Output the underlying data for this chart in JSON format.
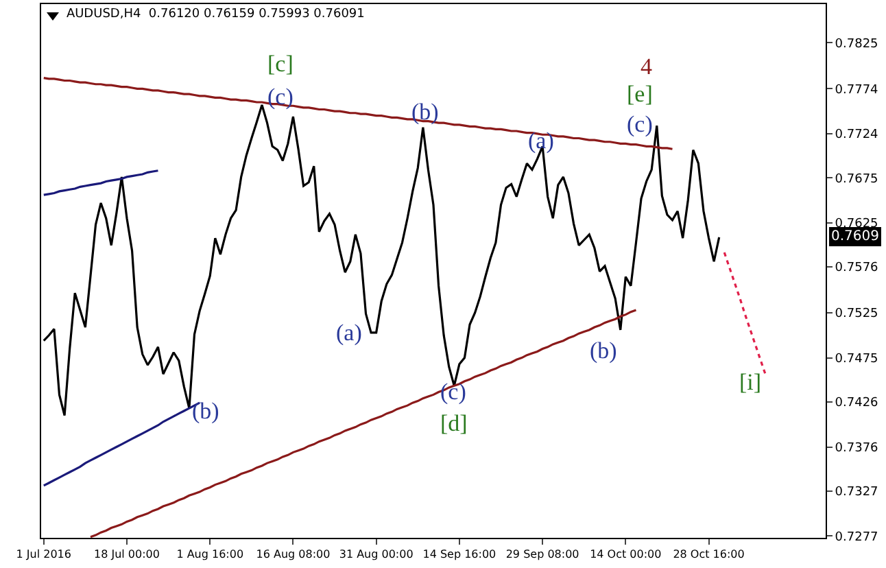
{
  "chart_data": {
    "type": "line",
    "title": "AUDUSD,H4  0.76120 0.76159 0.75993 0.76091",
    "marker": "none",
    "line_style": "solid",
    "grid": false,
    "categories": [
      "1 Jul 2016",
      null,
      null,
      null,
      null,
      null,
      null,
      null,
      null,
      null,
      null,
      null,
      null,
      null,
      null,
      null,
      "18 Jul 00:00",
      null,
      null,
      null,
      null,
      null,
      null,
      null,
      null,
      null,
      null,
      null,
      null,
      null,
      null,
      null,
      "1 Aug 16:00",
      null,
      null,
      null,
      null,
      null,
      null,
      null,
      null,
      null,
      null,
      null,
      null,
      null,
      null,
      null,
      "16 Aug 08:00",
      null,
      null,
      null,
      null,
      null,
      null,
      null,
      null,
      null,
      null,
      null,
      null,
      null,
      null,
      null,
      "31 Aug 00:00",
      null,
      null,
      null,
      null,
      null,
      null,
      null,
      null,
      null,
      null,
      null,
      null,
      null,
      null,
      null,
      "14 Sep 16:00",
      null,
      null,
      null,
      null,
      null,
      null,
      null,
      null,
      null,
      null,
      null,
      null,
      null,
      null,
      null,
      "29 Sep 08:00",
      null,
      null,
      null,
      null,
      null,
      null,
      null,
      null,
      null,
      null,
      null,
      null,
      null,
      null,
      null,
      "14 Oct 00:00",
      null,
      null,
      null,
      null,
      null,
      null,
      null,
      null,
      null,
      null,
      null,
      null,
      null,
      null,
      null,
      "28 Oct 16:00",
      null,
      null,
      null,
      null,
      null,
      null,
      null,
      null,
      null,
      null,
      null,
      null,
      null,
      null,
      null,
      null,
      null,
      null,
      null,
      null,
      null,
      null
    ],
    "ylim": [
      0.7275,
      0.7868
    ],
    "yticks": [
      0.7277,
      0.7327,
      0.7376,
      0.7426,
      0.7475,
      0.7525,
      0.7576,
      0.7625,
      0.7675,
      0.7724,
      0.7774,
      0.7825
    ],
    "series": [
      {
        "color": "#000000",
        "values": [
          0.7494,
          0.75,
          0.7507,
          0.7434,
          0.7411,
          0.7485,
          0.7547,
          0.7528,
          0.7509,
          0.7566,
          0.7623,
          0.7647,
          0.763,
          0.76,
          0.7636,
          0.7676,
          0.763,
          0.7594,
          0.7509,
          0.7479,
          0.7467,
          0.7476,
          0.7487,
          0.7457,
          0.7469,
          0.7481,
          0.7472,
          0.7443,
          0.7419,
          0.7501,
          0.7527,
          0.7546,
          0.7566,
          0.7608,
          0.759,
          0.7612,
          0.763,
          0.7639,
          0.7676,
          0.77,
          0.7719,
          0.7737,
          0.7756,
          0.7736,
          0.771,
          0.7706,
          0.7694,
          0.7713,
          0.7743,
          0.7707,
          0.7666,
          0.767,
          0.7688,
          0.7615,
          0.7627,
          0.7635,
          0.7623,
          0.7594,
          0.757,
          0.7582,
          0.7612,
          0.7591,
          0.7524,
          0.7503,
          0.7503,
          0.7538,
          0.7557,
          0.7567,
          0.7585,
          0.7603,
          0.763,
          0.766,
          0.7686,
          0.7731,
          0.7684,
          0.7645,
          0.7555,
          0.75,
          0.7465,
          0.7444,
          0.7468,
          0.7475,
          0.7512,
          0.7525,
          0.7543,
          0.7565,
          0.7586,
          0.7603,
          0.7645,
          0.7664,
          0.7668,
          0.7654,
          0.7673,
          0.7691,
          0.7684,
          0.7696,
          0.771,
          0.7654,
          0.763,
          0.7667,
          0.7676,
          0.7658,
          0.7624,
          0.76,
          0.7606,
          0.7612,
          0.7597,
          0.7571,
          0.7577,
          0.7559,
          0.7541,
          0.7506,
          0.7565,
          0.7555,
          0.7603,
          0.7652,
          0.7671,
          0.7684,
          0.7733,
          0.7655,
          0.7634,
          0.7628,
          0.7638,
          0.7608,
          0.765,
          0.7706,
          0.7691,
          0.7638,
          0.7608,
          0.7582,
          0.7609,
          null,
          null,
          null,
          null,
          null,
          null,
          null,
          null,
          null,
          null,
          null,
          null,
          null,
          null,
          null,
          null,
          null,
          null,
          null,
          null
        ]
      },
      {
        "color": "#8b1a1a",
        "values": [
          0.7786,
          0.7785,
          0.7785,
          0.7784,
          0.7783,
          0.7783,
          0.7782,
          0.7781,
          0.7781,
          0.778,
          0.7779,
          0.7779,
          0.7778,
          0.7778,
          0.7777,
          0.7776,
          0.7776,
          0.7775,
          0.7774,
          0.7774,
          0.7773,
          0.7772,
          0.7772,
          0.7771,
          0.777,
          0.777,
          0.7769,
          0.7768,
          0.7768,
          0.7767,
          0.7766,
          0.7766,
          0.7765,
          0.7764,
          0.7764,
          0.7763,
          0.7762,
          0.7762,
          0.7761,
          0.7761,
          0.776,
          0.7759,
          0.7759,
          0.7758,
          0.7757,
          0.7757,
          0.7756,
          0.7755,
          0.7755,
          0.7754,
          0.7753,
          0.7753,
          0.7752,
          0.7751,
          0.7751,
          0.775,
          0.7749,
          0.7749,
          0.7748,
          0.7747,
          0.7747,
          0.7746,
          0.7746,
          0.7745,
          0.7744,
          0.7744,
          0.7743,
          0.7742,
          0.7742,
          0.7741,
          0.774,
          0.774,
          0.7739,
          0.7738,
          0.7738,
          0.7737,
          0.7736,
          0.7736,
          0.7735,
          0.7734,
          0.7734,
          0.7733,
          0.7732,
          0.7732,
          0.7731,
          0.773,
          0.773,
          0.7729,
          0.7729,
          0.7728,
          0.7727,
          0.7727,
          0.7726,
          0.7725,
          0.7725,
          0.7724,
          0.7723,
          0.7723,
          0.7722,
          0.7721,
          0.7721,
          0.772,
          0.7719,
          0.7719,
          0.7718,
          0.7717,
          0.7717,
          0.7716,
          0.7715,
          0.7715,
          0.7714,
          0.7713,
          0.7713,
          0.7712,
          0.7712,
          0.7711,
          0.771,
          0.771,
          0.7709,
          0.7708,
          0.7708,
          0.7707,
          null,
          null,
          null,
          null,
          null,
          null,
          null,
          null,
          null,
          null,
          null,
          null,
          null,
          null,
          null,
          null,
          null,
          null,
          null,
          null,
          null,
          null,
          null,
          null,
          null,
          null,
          null,
          null,
          null
        ]
      },
      {
        "color": "#8b1a1a",
        "values": [
          null,
          null,
          null,
          null,
          null,
          null,
          null,
          null,
          null,
          0.7276,
          0.7278,
          0.7281,
          0.7283,
          0.7286,
          0.7288,
          0.729,
          0.7293,
          0.7295,
          0.7298,
          0.73,
          0.7302,
          0.7305,
          0.7307,
          0.731,
          0.7312,
          0.7314,
          0.7317,
          0.7319,
          0.7322,
          0.7324,
          0.7326,
          0.7329,
          0.7331,
          0.7334,
          0.7336,
          0.7338,
          0.7341,
          0.7343,
          0.7346,
          0.7348,
          0.735,
          0.7353,
          0.7355,
          0.7358,
          0.736,
          0.7362,
          0.7365,
          0.7367,
          0.737,
          0.7372,
          0.7374,
          0.7377,
          0.7379,
          0.7382,
          0.7384,
          0.7386,
          0.7389,
          0.7391,
          0.7394,
          0.7396,
          0.7398,
          0.7401,
          0.7403,
          0.7406,
          0.7408,
          0.741,
          0.7413,
          0.7415,
          0.7418,
          0.742,
          0.7422,
          0.7425,
          0.7427,
          0.743,
          0.7432,
          0.7434,
          0.7437,
          0.7439,
          0.7442,
          0.7444,
          0.7446,
          0.7449,
          0.7451,
          0.7454,
          0.7456,
          0.7458,
          0.7461,
          0.7463,
          0.7466,
          0.7468,
          0.747,
          0.7473,
          0.7475,
          0.7478,
          0.748,
          0.7482,
          0.7485,
          0.7487,
          0.749,
          0.7492,
          0.7494,
          0.7497,
          0.7499,
          0.7502,
          0.7504,
          0.7506,
          0.7509,
          0.7511,
          0.7514,
          0.7516,
          0.7518,
          0.7521,
          0.7523,
          0.7526,
          0.7528,
          null,
          null,
          null,
          null,
          null,
          null,
          null,
          null,
          null,
          null,
          null,
          null,
          null,
          null,
          null,
          null,
          null,
          null,
          null,
          null,
          null,
          null,
          null,
          null,
          null,
          null,
          null,
          null,
          null,
          null,
          null,
          null,
          null,
          null,
          null,
          null
        ]
      },
      {
        "color": "#1a1a7a",
        "values": [
          0.7656,
          0.7657,
          0.7658,
          0.766,
          0.7661,
          0.7662,
          0.7663,
          0.7665,
          0.7666,
          0.7667,
          0.7668,
          0.7669,
          0.7671,
          0.7672,
          0.7673,
          0.7674,
          0.7676,
          0.7677,
          0.7678,
          0.7679,
          0.7681,
          0.7682,
          0.7683,
          null,
          null,
          null,
          null,
          null,
          null,
          null,
          null,
          null,
          null,
          null,
          null,
          null,
          null,
          null,
          null,
          null,
          null,
          null,
          null,
          null,
          null,
          null,
          null,
          null,
          null,
          null,
          null,
          null,
          null,
          null,
          null,
          null,
          null,
          null,
          null,
          null,
          null,
          null,
          null,
          null,
          null,
          null,
          null,
          null,
          null,
          null,
          null,
          null,
          null,
          null,
          null,
          null,
          null,
          null,
          null,
          null,
          null,
          null,
          null,
          null,
          null,
          null,
          null,
          null,
          null,
          null,
          null,
          null,
          null,
          null,
          null,
          null,
          null,
          null,
          null,
          null,
          null,
          null,
          null,
          null,
          null,
          null,
          null,
          null,
          null,
          null,
          null,
          null,
          null,
          null,
          null,
          null,
          null,
          null,
          null,
          null,
          null,
          null,
          null,
          null,
          null,
          null,
          null,
          null,
          null,
          null,
          null,
          null,
          null,
          null,
          null,
          null,
          null,
          null,
          null,
          null,
          null,
          null,
          null,
          null,
          null,
          null,
          null,
          null,
          null,
          null,
          null
        ]
      },
      {
        "color": "#1a1a7a",
        "values": [
          0.7333,
          0.7336,
          0.7339,
          0.7342,
          0.7345,
          0.7348,
          0.7351,
          0.7354,
          0.7358,
          0.7361,
          0.7364,
          0.7367,
          0.737,
          0.7373,
          0.7376,
          0.7379,
          0.7382,
          0.7385,
          0.7388,
          0.7391,
          0.7394,
          0.7397,
          0.74,
          0.7404,
          0.7407,
          0.741,
          0.7413,
          0.7416,
          0.7419,
          0.7422,
          0.7425,
          null,
          null,
          null,
          null,
          null,
          null,
          null,
          null,
          null,
          null,
          null,
          null,
          null,
          null,
          null,
          null,
          null,
          null,
          null,
          null,
          null,
          null,
          null,
          null,
          null,
          null,
          null,
          null,
          null,
          null,
          null,
          null,
          null,
          null,
          null,
          null,
          null,
          null,
          null,
          null,
          null,
          null,
          null,
          null,
          null,
          null,
          null,
          null,
          null,
          null,
          null,
          null,
          null,
          null,
          null,
          null,
          null,
          null,
          null,
          null,
          null,
          null,
          null,
          null,
          null,
          null,
          null,
          null,
          null,
          null,
          null,
          null,
          null,
          null,
          null,
          null,
          null,
          null,
          null,
          null,
          null,
          null,
          null,
          null,
          null,
          null,
          null,
          null,
          null,
          null,
          null,
          null,
          null,
          null,
          null,
          null,
          null,
          null,
          null,
          null,
          null,
          null,
          null,
          null,
          null,
          null,
          null,
          null,
          null,
          null,
          null,
          null,
          null,
          null,
          null,
          null,
          null,
          null,
          null,
          null
        ]
      },
      {
        "color": "#e0204a",
        "line_style": "dotted",
        "values": [
          null,
          null,
          null,
          null,
          null,
          null,
          null,
          null,
          null,
          null,
          null,
          null,
          null,
          null,
          null,
          null,
          null,
          null,
          null,
          null,
          null,
          null,
          null,
          null,
          null,
          null,
          null,
          null,
          null,
          null,
          null,
          null,
          null,
          null,
          null,
          null,
          null,
          null,
          null,
          null,
          null,
          null,
          null,
          null,
          null,
          null,
          null,
          null,
          null,
          null,
          null,
          null,
          null,
          null,
          null,
          null,
          null,
          null,
          null,
          null,
          null,
          null,
          null,
          null,
          null,
          null,
          null,
          null,
          null,
          null,
          null,
          null,
          null,
          null,
          null,
          null,
          null,
          null,
          null,
          null,
          null,
          null,
          null,
          null,
          null,
          null,
          null,
          null,
          null,
          null,
          null,
          null,
          null,
          null,
          null,
          null,
          null,
          null,
          null,
          null,
          null,
          null,
          null,
          null,
          null,
          null,
          null,
          null,
          null,
          null,
          null,
          null,
          null,
          null,
          null,
          null,
          null,
          null,
          null,
          null,
          null,
          null,
          null,
          null,
          null,
          null,
          null,
          null,
          null,
          null,
          null,
          0.7592,
          0.7575,
          0.7558,
          0.7541,
          0.7523,
          0.7506,
          0.7489,
          0.7472,
          0.7455,
          null,
          null,
          null,
          null,
          null,
          null,
          null,
          null,
          null,
          null,
          null
        ]
      }
    ],
    "annotations": [
      "[c]",
      "(c)",
      "(b)",
      "(a)",
      "4",
      "[e]",
      "(c)",
      "(a)",
      "(b)",
      "(c)",
      "[d]",
      "(b)",
      "[i]",
      "0.7609"
    ]
  }
}
